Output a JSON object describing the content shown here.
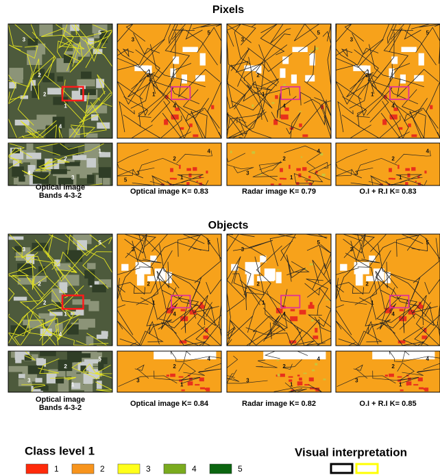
{
  "sections": [
    {
      "title": "Pixels",
      "captions": [
        [
          "Optical image",
          "Bands 4-3-2"
        ],
        [
          "Optical image  K= 0.83"
        ],
        [
          "Radar image  K= 0.79"
        ],
        [
          "O.I + R.I  K= 0.83"
        ]
      ],
      "big_labels": [
        [
          "3",
          "5",
          "2",
          "2",
          "1",
          "4"
        ],
        [
          "3",
          "5",
          "2",
          "1",
          "4"
        ],
        [
          "3",
          "5",
          "2",
          "1",
          "4"
        ],
        [
          "3",
          "5",
          "2",
          "1",
          "4"
        ]
      ],
      "small_labels": [
        [
          "1",
          "2",
          "3",
          "4"
        ],
        [
          "4",
          "2",
          "1",
          "3",
          "5"
        ],
        [
          "4",
          "2",
          "1",
          "3"
        ],
        [
          "4",
          "2",
          "1",
          "3"
        ]
      ]
    },
    {
      "title": "Objects",
      "captions": [
        [
          "Optical image",
          "Bands 4-3-2"
        ],
        [
          "Optical image  K= 0.84"
        ],
        [
          "Radar image  K= 0.82"
        ],
        [
          "O.I + R.I  K= 0.85"
        ]
      ],
      "big_labels": [
        [
          "3",
          "5",
          "2",
          "2",
          "1",
          "4"
        ],
        [
          "3",
          "5",
          "2",
          "1",
          "4"
        ],
        [
          "3",
          "5",
          "2",
          "1",
          "4"
        ],
        [
          "3",
          "5",
          "2",
          "1",
          "4"
        ]
      ],
      "small_labels": [
        [
          "5",
          "2",
          "1",
          "3"
        ],
        [
          "4",
          "2",
          "1",
          "3"
        ],
        [
          "4",
          "2",
          "1",
          "3"
        ],
        [
          "4",
          "2",
          "1",
          "3"
        ]
      ]
    }
  ],
  "legend": {
    "title": "Class level 1",
    "items": [
      {
        "label": "1",
        "color": "#ff2a0a"
      },
      {
        "label": "2",
        "color": "#f7941d"
      },
      {
        "label": "3",
        "color": "#ffff1a"
      },
      {
        "label": "4",
        "color": "#7aab1e"
      },
      {
        "label": "5",
        "color": "#0b6510"
      }
    ]
  },
  "visual_interpretation": {
    "title": "Visual interpretation",
    "colors": [
      "#000000",
      "#ffff00"
    ]
  }
}
